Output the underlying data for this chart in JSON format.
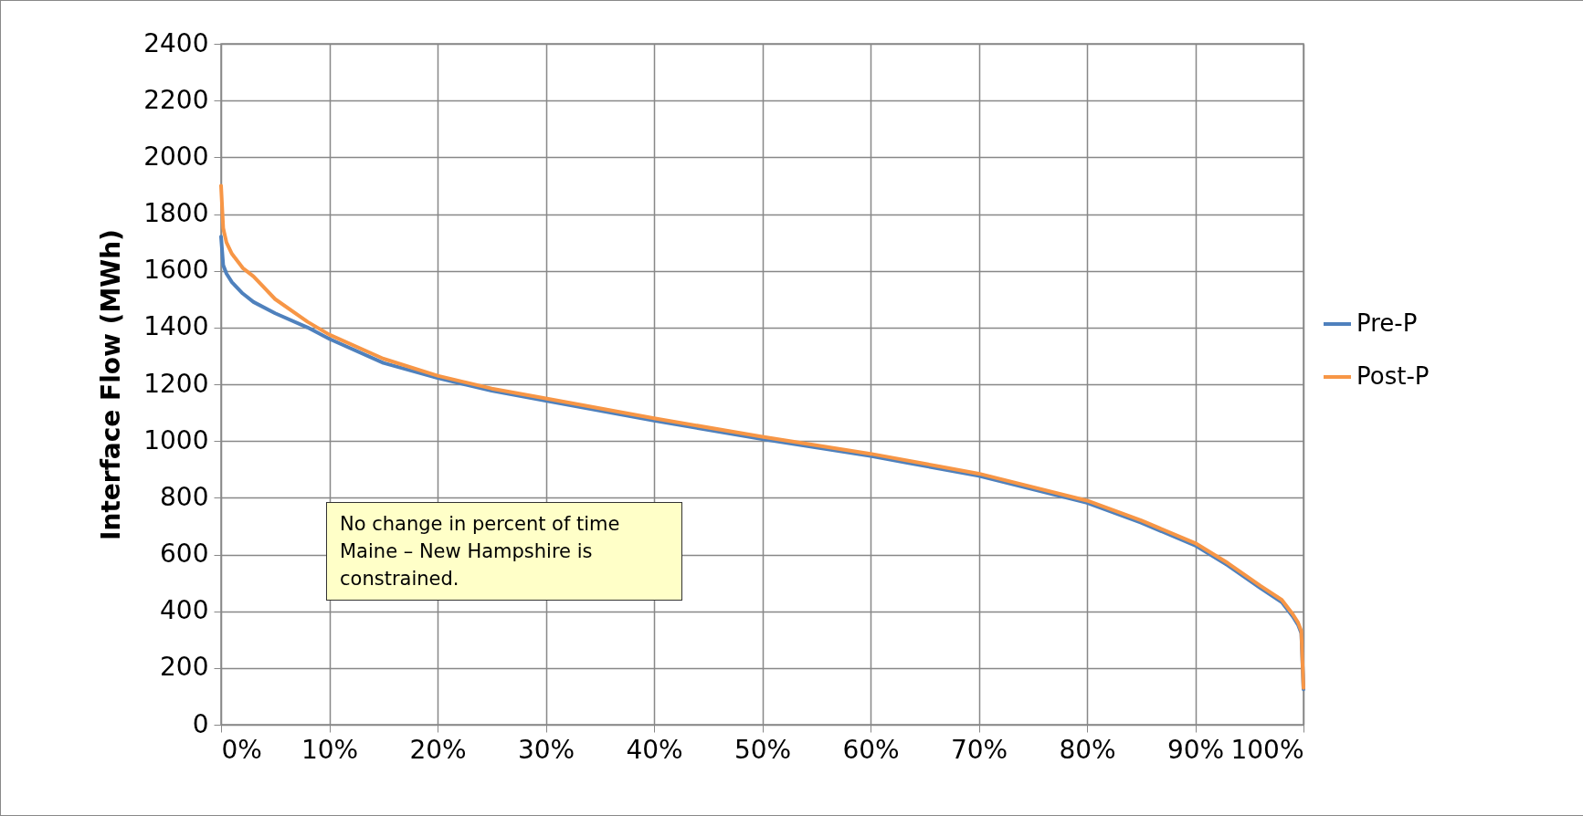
{
  "chart_data": {
    "type": "line",
    "ylabel": "Interface Flow (MWh)",
    "x": [
      0,
      0.2,
      0.5,
      1,
      2,
      3,
      5,
      8,
      10,
      15,
      20,
      25,
      30,
      40,
      50,
      60,
      70,
      80,
      85,
      90,
      93,
      96,
      98,
      99,
      99.5,
      99.8,
      100
    ],
    "series": [
      {
        "name": "Pre-P",
        "color": "#4f81bd",
        "values": [
          1720,
          1620,
          1590,
          1560,
          1520,
          1490,
          1450,
          1400,
          1360,
          1275,
          1222,
          1177,
          1142,
          1072,
          1007,
          947,
          877,
          782,
          712,
          632,
          562,
          482,
          432,
          382,
          352,
          322,
          125
        ]
      },
      {
        "name": "Post-P",
        "color": "#f79646",
        "values": [
          1900,
          1750,
          1700,
          1660,
          1610,
          1580,
          1500,
          1420,
          1375,
          1290,
          1230,
          1185,
          1150,
          1080,
          1015,
          955,
          885,
          790,
          720,
          640,
          570,
          490,
          440,
          390,
          360,
          330,
          130
        ]
      }
    ],
    "xlim": [
      0,
      100
    ],
    "xticks": [
      {
        "value": 0,
        "label": "0%"
      },
      {
        "value": 10,
        "label": "10%"
      },
      {
        "value": 20,
        "label": "20%"
      },
      {
        "value": 30,
        "label": "30%"
      },
      {
        "value": 40,
        "label": "40%"
      },
      {
        "value": 50,
        "label": "50%"
      },
      {
        "value": 60,
        "label": "60%"
      },
      {
        "value": 70,
        "label": "70%"
      },
      {
        "value": 80,
        "label": "80%"
      },
      {
        "value": 90,
        "label": "90%"
      },
      {
        "value": 100,
        "label": "100%"
      }
    ],
    "ylim": [
      0,
      2400
    ],
    "yticks": [
      0,
      200,
      400,
      600,
      800,
      1000,
      1200,
      1400,
      1600,
      1800,
      2000,
      2200,
      2400
    ],
    "grid": true,
    "legend": "right",
    "marker": "none",
    "line_style": "solid",
    "annotations": [
      "No change in percent of time Maine – New Hampshire is constrained."
    ]
  }
}
